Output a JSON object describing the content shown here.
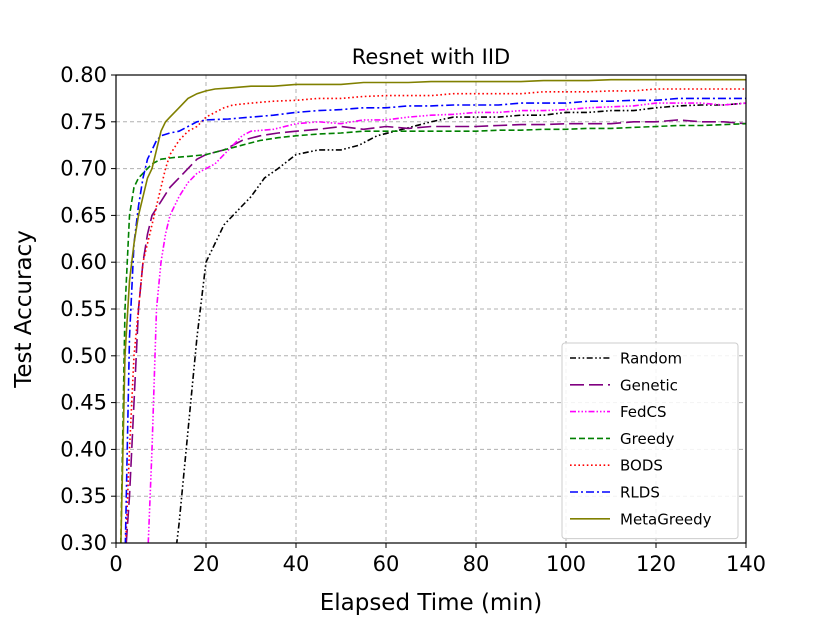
{
  "chart_data": {
    "type": "line",
    "title": "Resnet with IID",
    "xlabel": "Elapsed Time (min)",
    "ylabel": "Test Accuracy",
    "xlim": [
      0,
      140
    ],
    "ylim": [
      0.3,
      0.8
    ],
    "xticks": [
      0,
      20,
      40,
      60,
      80,
      100,
      120,
      140
    ],
    "xtick_labels": [
      "0",
      "20",
      "40",
      "60",
      "80",
      "100",
      "120",
      "140"
    ],
    "yticks": [
      0.3,
      0.35,
      0.4,
      0.45,
      0.5,
      0.55,
      0.6,
      0.65,
      0.7,
      0.75,
      0.8
    ],
    "ytick_labels": [
      "0.30",
      "0.35",
      "0.40",
      "0.45",
      "0.50",
      "0.55",
      "0.60",
      "0.65",
      "0.70",
      "0.75",
      "0.80"
    ],
    "grid": true,
    "legend_position": "lower-right",
    "series": [
      {
        "name": "Random",
        "color": "#000000",
        "dash": "dashdotdot",
        "points": [
          [
            13,
            0.28
          ],
          [
            14,
            0.32
          ],
          [
            16,
            0.42
          ],
          [
            18,
            0.52
          ],
          [
            20,
            0.6
          ],
          [
            22,
            0.62
          ],
          [
            24,
            0.64
          ],
          [
            26,
            0.65
          ],
          [
            28,
            0.66
          ],
          [
            30,
            0.67
          ],
          [
            33,
            0.69
          ],
          [
            36,
            0.7
          ],
          [
            40,
            0.715
          ],
          [
            45,
            0.72
          ],
          [
            50,
            0.72
          ],
          [
            54,
            0.725
          ],
          [
            58,
            0.735
          ],
          [
            62,
            0.74
          ],
          [
            66,
            0.745
          ],
          [
            70,
            0.75
          ],
          [
            75,
            0.755
          ],
          [
            80,
            0.755
          ],
          [
            85,
            0.755
          ],
          [
            90,
            0.757
          ],
          [
            95,
            0.757
          ],
          [
            100,
            0.76
          ],
          [
            105,
            0.76
          ],
          [
            110,
            0.762
          ],
          [
            115,
            0.762
          ],
          [
            120,
            0.765
          ],
          [
            125,
            0.767
          ],
          [
            130,
            0.768
          ],
          [
            135,
            0.768
          ],
          [
            140,
            0.77
          ]
        ]
      },
      {
        "name": "Genetic",
        "color": "#800080",
        "dash": "longdash",
        "points": [
          [
            2,
            0.28
          ],
          [
            3,
            0.35
          ],
          [
            4,
            0.45
          ],
          [
            5,
            0.55
          ],
          [
            6,
            0.6
          ],
          [
            7,
            0.63
          ],
          [
            8,
            0.65
          ],
          [
            10,
            0.665
          ],
          [
            12,
            0.68
          ],
          [
            14,
            0.69
          ],
          [
            16,
            0.7
          ],
          [
            18,
            0.71
          ],
          [
            20,
            0.715
          ],
          [
            24,
            0.72
          ],
          [
            28,
            0.73
          ],
          [
            32,
            0.735
          ],
          [
            36,
            0.738
          ],
          [
            40,
            0.74
          ],
          [
            45,
            0.742
          ],
          [
            50,
            0.745
          ],
          [
            55,
            0.742
          ],
          [
            60,
            0.745
          ],
          [
            65,
            0.743
          ],
          [
            70,
            0.745
          ],
          [
            75,
            0.745
          ],
          [
            80,
            0.745
          ],
          [
            85,
            0.746
          ],
          [
            90,
            0.747
          ],
          [
            95,
            0.747
          ],
          [
            100,
            0.748
          ],
          [
            105,
            0.748
          ],
          [
            110,
            0.748
          ],
          [
            115,
            0.75
          ],
          [
            120,
            0.75
          ],
          [
            125,
            0.752
          ],
          [
            130,
            0.75
          ],
          [
            135,
            0.75
          ],
          [
            140,
            0.748
          ]
        ]
      },
      {
        "name": "FedCS",
        "color": "#ff00ff",
        "dash": "dashdotdotdot",
        "points": [
          [
            7,
            0.28
          ],
          [
            8,
            0.4
          ],
          [
            9,
            0.55
          ],
          [
            10,
            0.6
          ],
          [
            11,
            0.63
          ],
          [
            12,
            0.65
          ],
          [
            14,
            0.67
          ],
          [
            16,
            0.685
          ],
          [
            18,
            0.695
          ],
          [
            20,
            0.7
          ],
          [
            22,
            0.705
          ],
          [
            24,
            0.715
          ],
          [
            26,
            0.725
          ],
          [
            28,
            0.735
          ],
          [
            30,
            0.74
          ],
          [
            35,
            0.742
          ],
          [
            40,
            0.748
          ],
          [
            45,
            0.75
          ],
          [
            50,
            0.748
          ],
          [
            55,
            0.752
          ],
          [
            60,
            0.752
          ],
          [
            65,
            0.755
          ],
          [
            70,
            0.757
          ],
          [
            75,
            0.758
          ],
          [
            80,
            0.76
          ],
          [
            85,
            0.76
          ],
          [
            90,
            0.762
          ],
          [
            95,
            0.762
          ],
          [
            100,
            0.763
          ],
          [
            105,
            0.765
          ],
          [
            110,
            0.766
          ],
          [
            115,
            0.767
          ],
          [
            120,
            0.77
          ],
          [
            125,
            0.77
          ],
          [
            130,
            0.77
          ],
          [
            135,
            0.768
          ],
          [
            140,
            0.77
          ]
        ]
      },
      {
        "name": "Greedy",
        "color": "#008000",
        "dash": "dash",
        "points": [
          [
            1,
            0.28
          ],
          [
            2,
            0.55
          ],
          [
            3,
            0.65
          ],
          [
            4,
            0.68
          ],
          [
            5,
            0.69
          ],
          [
            6,
            0.695
          ],
          [
            7,
            0.7
          ],
          [
            8,
            0.705
          ],
          [
            10,
            0.71
          ],
          [
            13,
            0.712
          ],
          [
            16,
            0.713
          ],
          [
            20,
            0.715
          ],
          [
            24,
            0.72
          ],
          [
            28,
            0.725
          ],
          [
            32,
            0.73
          ],
          [
            36,
            0.733
          ],
          [
            40,
            0.735
          ],
          [
            45,
            0.737
          ],
          [
            50,
            0.738
          ],
          [
            55,
            0.74
          ],
          [
            60,
            0.74
          ],
          [
            65,
            0.74
          ],
          [
            70,
            0.74
          ],
          [
            75,
            0.74
          ],
          [
            80,
            0.74
          ],
          [
            85,
            0.741
          ],
          [
            90,
            0.741
          ],
          [
            95,
            0.742
          ],
          [
            100,
            0.742
          ],
          [
            105,
            0.743
          ],
          [
            110,
            0.743
          ],
          [
            115,
            0.744
          ],
          [
            120,
            0.745
          ],
          [
            125,
            0.746
          ],
          [
            130,
            0.746
          ],
          [
            135,
            0.747
          ],
          [
            140,
            0.748
          ]
        ]
      },
      {
        "name": "BODS",
        "color": "#ff0000",
        "dash": "dot",
        "points": [
          [
            2,
            0.28
          ],
          [
            3,
            0.4
          ],
          [
            4,
            0.5
          ],
          [
            5,
            0.55
          ],
          [
            6,
            0.6
          ],
          [
            7,
            0.62
          ],
          [
            8,
            0.64
          ],
          [
            9,
            0.66
          ],
          [
            10,
            0.68
          ],
          [
            11,
            0.7
          ],
          [
            12,
            0.715
          ],
          [
            14,
            0.73
          ],
          [
            16,
            0.74
          ],
          [
            18,
            0.745
          ],
          [
            20,
            0.755
          ],
          [
            22,
            0.76
          ],
          [
            24,
            0.765
          ],
          [
            26,
            0.768
          ],
          [
            30,
            0.77
          ],
          [
            35,
            0.772
          ],
          [
            40,
            0.773
          ],
          [
            45,
            0.775
          ],
          [
            50,
            0.775
          ],
          [
            55,
            0.777
          ],
          [
            60,
            0.778
          ],
          [
            65,
            0.778
          ],
          [
            70,
            0.778
          ],
          [
            75,
            0.78
          ],
          [
            80,
            0.78
          ],
          [
            85,
            0.78
          ],
          [
            90,
            0.78
          ],
          [
            95,
            0.782
          ],
          [
            100,
            0.782
          ],
          [
            105,
            0.782
          ],
          [
            110,
            0.783
          ],
          [
            115,
            0.783
          ],
          [
            120,
            0.785
          ],
          [
            125,
            0.785
          ],
          [
            130,
            0.785
          ],
          [
            135,
            0.785
          ],
          [
            140,
            0.785
          ]
        ]
      },
      {
        "name": "RLDS",
        "color": "#0000ff",
        "dash": "dashdot",
        "points": [
          [
            2,
            0.28
          ],
          [
            3,
            0.52
          ],
          [
            4,
            0.62
          ],
          [
            5,
            0.66
          ],
          [
            6,
            0.69
          ],
          [
            7,
            0.71
          ],
          [
            8,
            0.72
          ],
          [
            9,
            0.73
          ],
          [
            10,
            0.735
          ],
          [
            12,
            0.738
          ],
          [
            14,
            0.74
          ],
          [
            16,
            0.745
          ],
          [
            18,
            0.75
          ],
          [
            20,
            0.752
          ],
          [
            25,
            0.753
          ],
          [
            30,
            0.755
          ],
          [
            35,
            0.757
          ],
          [
            40,
            0.76
          ],
          [
            45,
            0.762
          ],
          [
            50,
            0.763
          ],
          [
            55,
            0.765
          ],
          [
            60,
            0.765
          ],
          [
            65,
            0.767
          ],
          [
            70,
            0.767
          ],
          [
            75,
            0.768
          ],
          [
            80,
            0.768
          ],
          [
            85,
            0.768
          ],
          [
            90,
            0.77
          ],
          [
            95,
            0.77
          ],
          [
            100,
            0.77
          ],
          [
            105,
            0.772
          ],
          [
            110,
            0.772
          ],
          [
            115,
            0.773
          ],
          [
            120,
            0.773
          ],
          [
            125,
            0.775
          ],
          [
            130,
            0.775
          ],
          [
            135,
            0.775
          ],
          [
            140,
            0.775
          ]
        ]
      },
      {
        "name": "MetaGreedy",
        "color": "#808000",
        "dash": "solid",
        "points": [
          [
            1,
            0.28
          ],
          [
            2,
            0.5
          ],
          [
            3,
            0.58
          ],
          [
            4,
            0.62
          ],
          [
            5,
            0.65
          ],
          [
            6,
            0.67
          ],
          [
            7,
            0.69
          ],
          [
            8,
            0.7
          ],
          [
            9,
            0.72
          ],
          [
            10,
            0.74
          ],
          [
            11,
            0.75
          ],
          [
            12,
            0.755
          ],
          [
            14,
            0.765
          ],
          [
            16,
            0.775
          ],
          [
            18,
            0.78
          ],
          [
            20,
            0.783
          ],
          [
            22,
            0.785
          ],
          [
            25,
            0.786
          ],
          [
            30,
            0.788
          ],
          [
            35,
            0.788
          ],
          [
            40,
            0.79
          ],
          [
            45,
            0.79
          ],
          [
            50,
            0.79
          ],
          [
            55,
            0.792
          ],
          [
            60,
            0.792
          ],
          [
            65,
            0.792
          ],
          [
            70,
            0.793
          ],
          [
            75,
            0.793
          ],
          [
            80,
            0.793
          ],
          [
            85,
            0.793
          ],
          [
            90,
            0.793
          ],
          [
            95,
            0.794
          ],
          [
            100,
            0.794
          ],
          [
            105,
            0.794
          ],
          [
            110,
            0.795
          ],
          [
            115,
            0.795
          ],
          [
            120,
            0.795
          ],
          [
            125,
            0.795
          ],
          [
            130,
            0.795
          ],
          [
            135,
            0.795
          ],
          [
            140,
            0.795
          ]
        ]
      }
    ]
  }
}
